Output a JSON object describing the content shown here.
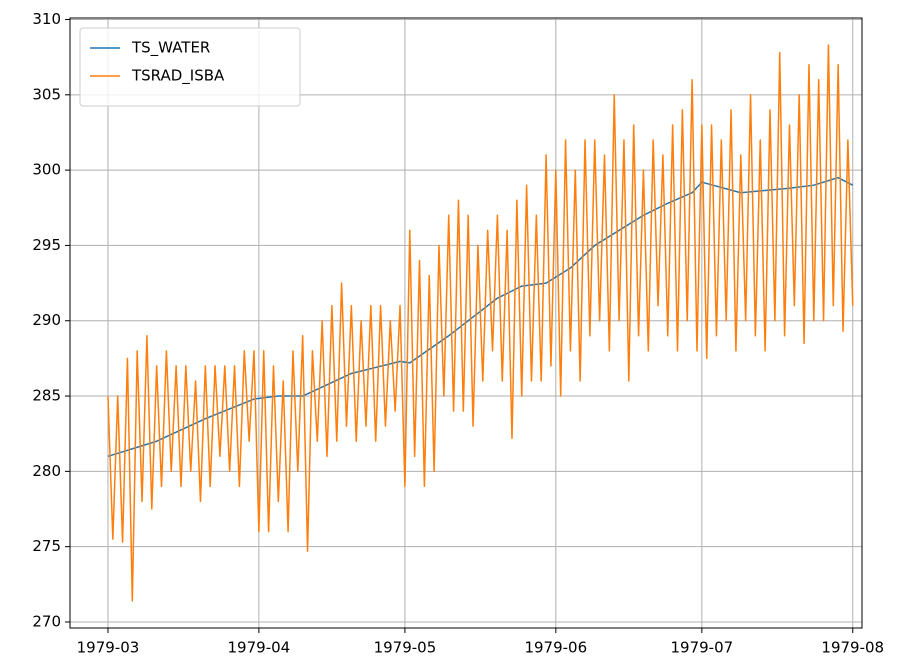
{
  "chart_data": {
    "type": "line",
    "series": [
      {
        "name": "TS_WATER",
        "color": "#1f77b4",
        "x": [
          0,
          10,
          20,
          30,
          35,
          40,
          50,
          60,
          62,
          70,
          80,
          85,
          90,
          95,
          100,
          110,
          115,
          120,
          122,
          130,
          140,
          145,
          150,
          153
        ],
        "values": [
          281,
          282,
          283.5,
          284.8,
          285,
          285,
          286.5,
          287.3,
          287.2,
          289,
          291.5,
          292.3,
          292.5,
          293.5,
          295,
          297,
          297.8,
          298.5,
          299.2,
          298.5,
          298.8,
          299,
          299.5,
          299
        ]
      },
      {
        "name": "TSRAD_ISBA",
        "color": "#ff7f0e",
        "x": [
          0,
          1,
          2,
          3,
          4,
          5,
          6,
          7,
          8,
          9,
          10,
          11,
          12,
          13,
          14,
          15,
          16,
          17,
          18,
          19,
          20,
          21,
          22,
          23,
          24,
          25,
          26,
          27,
          28,
          29,
          30,
          31,
          32,
          33,
          34,
          35,
          36,
          37,
          38,
          39,
          40,
          41,
          42,
          43,
          44,
          45,
          46,
          47,
          48,
          49,
          50,
          51,
          52,
          53,
          54,
          55,
          56,
          57,
          58,
          59,
          60,
          61,
          62,
          63,
          64,
          65,
          66,
          67,
          68,
          69,
          70,
          71,
          72,
          73,
          74,
          75,
          76,
          77,
          78,
          79,
          80,
          81,
          82,
          83,
          84,
          85,
          86,
          87,
          88,
          89,
          90,
          91,
          92,
          93,
          94,
          95,
          96,
          97,
          98,
          99,
          100,
          101,
          102,
          103,
          104,
          105,
          106,
          107,
          108,
          109,
          110,
          111,
          112,
          113,
          114,
          115,
          116,
          117,
          118,
          119,
          120,
          121,
          122,
          123,
          124,
          125,
          126,
          127,
          128,
          129,
          130,
          131,
          132,
          133,
          134,
          135,
          136,
          137,
          138,
          139,
          140,
          141,
          142,
          143,
          144,
          145,
          146,
          147,
          148,
          149,
          150,
          151,
          152,
          153
        ],
        "values": [
          285,
          275.5,
          285,
          275.3,
          287.5,
          271.4,
          288,
          278,
          289,
          277.5,
          287,
          279,
          288,
          280,
          287,
          279,
          287,
          280,
          286,
          278,
          287,
          279,
          287,
          281,
          287,
          280,
          287,
          279,
          288,
          282,
          288,
          276,
          288,
          276,
          287,
          278,
          286,
          276,
          288,
          280,
          289,
          274.7,
          288,
          282,
          290,
          281,
          291,
          282,
          292.5,
          283,
          291,
          282,
          290,
          283,
          291,
          282,
          291,
          283,
          290,
          284,
          291,
          279,
          296,
          281,
          294,
          279,
          293,
          280,
          295,
          285,
          297,
          284,
          298,
          284,
          297,
          283,
          295,
          286,
          296,
          288,
          297,
          286,
          296,
          282.2,
          298,
          285,
          299,
          286,
          297,
          286,
          301,
          287,
          300,
          285,
          302,
          288,
          300,
          286,
          302,
          289,
          302,
          290,
          301,
          288,
          305,
          290,
          302,
          286,
          303,
          289,
          300,
          288,
          302,
          291,
          301,
          289,
          303,
          288,
          304,
          290,
          306,
          288,
          303,
          287.5,
          303,
          289,
          302,
          290,
          304,
          288,
          301,
          290,
          305,
          289,
          302,
          288,
          304,
          290,
          307.8,
          289,
          303,
          291,
          305,
          288.5,
          307,
          290,
          306,
          290,
          308.3,
          291,
          307,
          289.3,
          302,
          291
        ]
      }
    ],
    "xlim": [
      -7.8,
      154.9
    ],
    "xticks": [
      {
        "value": 0,
        "label": "1979-03"
      },
      {
        "value": 31,
        "label": "1979-04"
      },
      {
        "value": 61,
        "label": "1979-05"
      },
      {
        "value": 92,
        "label": "1979-06"
      },
      {
        "value": 122,
        "label": "1979-07"
      },
      {
        "value": 153,
        "label": "1979-08"
      }
    ],
    "ylim": [
      269.6,
      310.1
    ],
    "yticks": [
      270,
      275,
      280,
      285,
      290,
      295,
      300,
      305,
      310
    ],
    "grid": true,
    "legend": "upper-left"
  }
}
